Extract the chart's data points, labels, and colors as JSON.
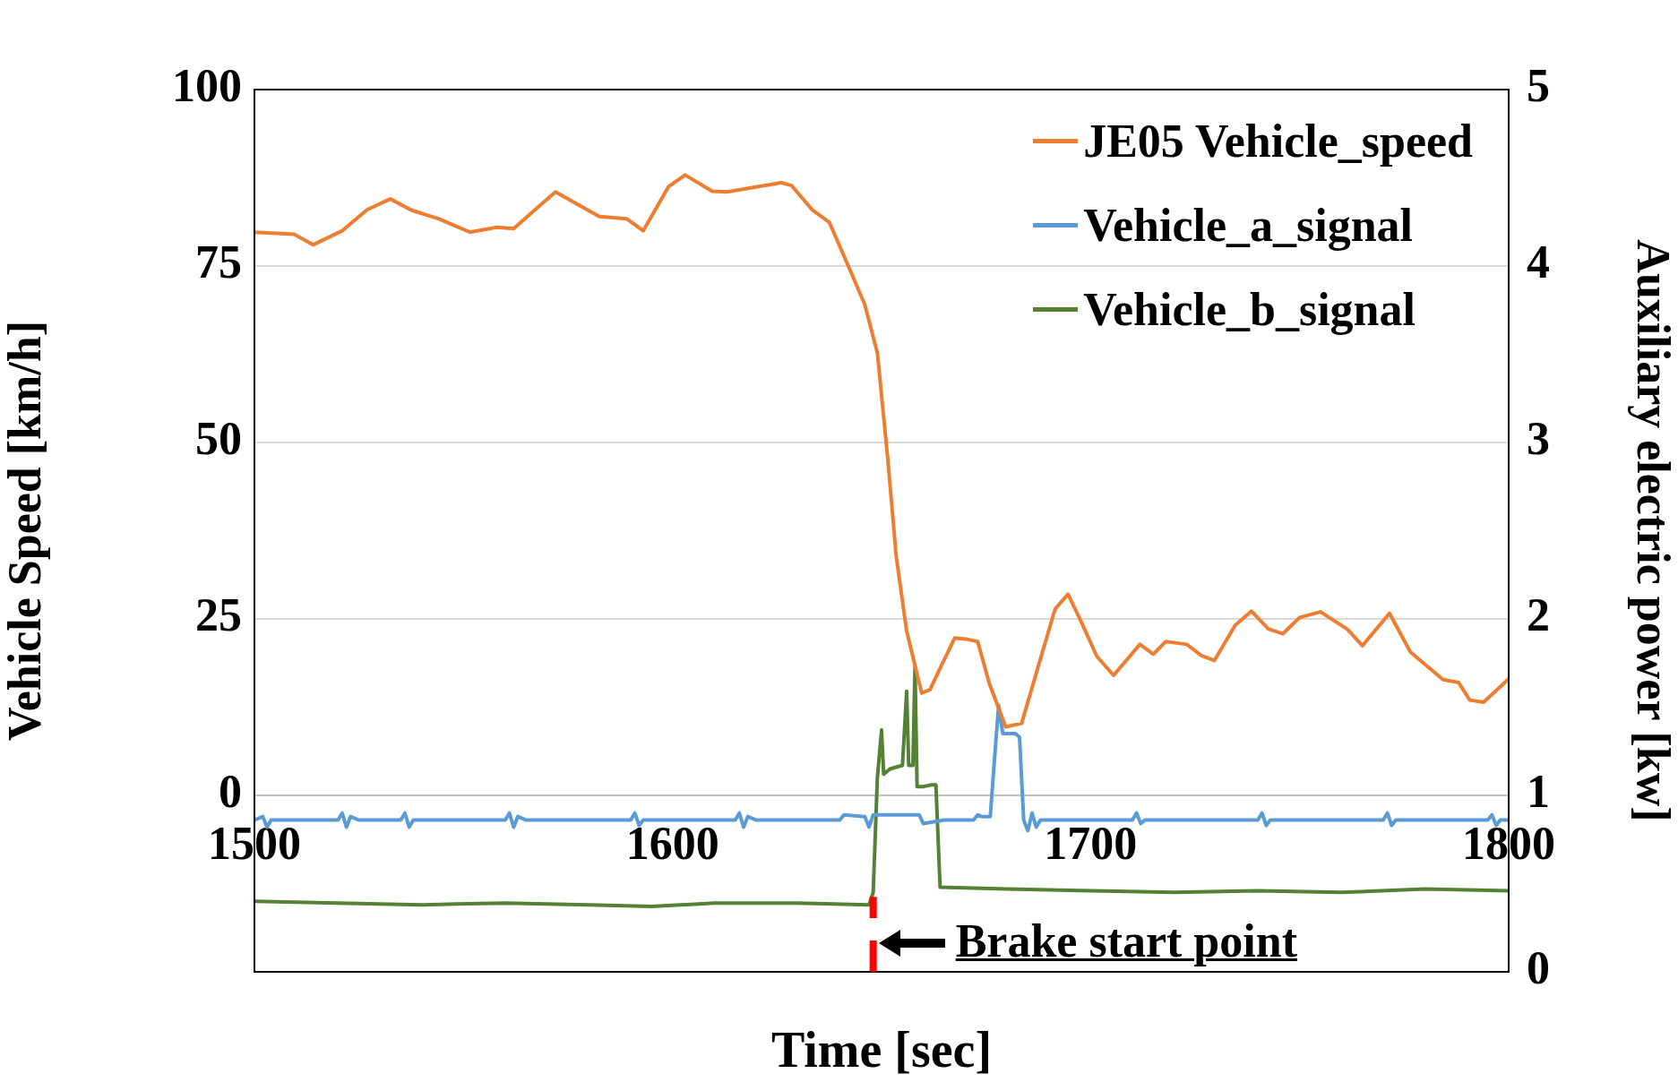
{
  "chart_data": {
    "type": "line",
    "xlabel": "Time [sec]",
    "ylabel": "Vehicle Speed [km/h]",
    "y2label": "Auxiliary electric power [kw]",
    "xlim": [
      1500,
      1800
    ],
    "xticks": [
      1500,
      1600,
      1700,
      1800
    ],
    "ylim": [
      -25,
      100
    ],
    "yticks": [
      0,
      25,
      50,
      75,
      100
    ],
    "y2lim": [
      0,
      5
    ],
    "y2ticks": [
      0,
      1,
      2,
      3,
      4,
      5
    ],
    "grid": "y",
    "legend": "top right",
    "marker": "none",
    "line_style": "solid",
    "ref_lines": [
      {
        "axis": "x",
        "value": 1648,
        "color": "#ff0000",
        "line_style": "dashed"
      }
    ],
    "annotations": [
      {
        "text": "Brake start point",
        "x": 1648,
        "y": -21
      }
    ],
    "series": [
      {
        "name": "JE05 Vehicle_speed",
        "color": "#ed7d31",
        "x": [
          1500,
          1509.5,
          1514,
          1521,
          1527,
          1532.5,
          1537.6,
          1544,
          1551.5,
          1558,
          1562,
          1566,
          1572,
          1582.5,
          1589,
          1593,
          1599,
          1603,
          1609.5,
          1613,
          1626,
          1628.5,
          1633.5,
          1637.5,
          1642.5,
          1646,
          1649,
          1651.5,
          1653.5,
          1656,
          1659.6,
          1661.6,
          1664,
          1667.5,
          1670.6,
          1673,
          1675.8,
          1679.7,
          1683.5,
          1687,
          1691.5,
          1694.6,
          1697.6,
          1701.5,
          1705.5,
          1711.8,
          1715,
          1718,
          1723,
          1726.5,
          1729.6,
          1734.6,
          1738.5,
          1742.5,
          1746,
          1750,
          1755,
          1761.5,
          1765,
          1771.5,
          1776.5,
          1784.3,
          1788,
          1790.7,
          1794,
          1800
        ],
        "values": [
          79.8,
          79.5,
          78,
          80,
          83,
          84.5,
          82.9,
          81.7,
          79.8,
          80.5,
          80.3,
          82.4,
          85.5,
          82,
          81.7,
          80,
          86.2,
          87.9,
          85.6,
          85.5,
          86.8,
          86.4,
          82.9,
          81.2,
          74.4,
          69.5,
          62.7,
          47.6,
          33.9,
          23.3,
          14.5,
          15,
          18,
          22.3,
          22.1,
          21.8,
          15.8,
          9.7,
          10.2,
          17.3,
          26.4,
          28.5,
          24.8,
          19.7,
          17,
          21.4,
          20,
          21.8,
          21.4,
          19.8,
          19.1,
          24.1,
          26.1,
          23.6,
          22.9,
          25.2,
          26,
          23.5,
          21.2,
          25.8,
          20.3,
          16.4,
          16,
          13.5,
          13.2,
          16.5
        ]
      },
      {
        "name": "Vehicle_a_signal",
        "color": "#5b9bd5",
        "axis": "y2",
        "x": [
          1500,
          1502,
          1503,
          1504,
          1520,
          1521,
          1522,
          1523,
          1525,
          1535,
          1536,
          1537,
          1538,
          1560,
          1561,
          1562,
          1563,
          1565,
          1590,
          1591,
          1592,
          1593,
          1615,
          1616,
          1617,
          1618,
          1620,
          1640,
          1641,
          1646,
          1647,
          1648,
          1659,
          1660,
          1665,
          1672,
          1673,
          1674,
          1676,
          1677,
          1678,
          1679,
          1682,
          1683,
          1684,
          1685,
          1686,
          1687,
          1688,
          1710,
          1711,
          1712,
          1713,
          1740,
          1741,
          1742,
          1743,
          1770,
          1771,
          1772,
          1773,
          1795,
          1796,
          1797,
          1798,
          1800
        ],
        "values": [
          0.86,
          0.88,
          0.82,
          0.86,
          0.86,
          0.9,
          0.82,
          0.88,
          0.86,
          0.86,
          0.9,
          0.82,
          0.86,
          0.86,
          0.9,
          0.82,
          0.88,
          0.86,
          0.86,
          0.9,
          0.83,
          0.86,
          0.86,
          0.9,
          0.82,
          0.88,
          0.86,
          0.86,
          0.89,
          0.88,
          0.82,
          0.89,
          0.89,
          0.84,
          0.86,
          0.86,
          0.89,
          0.88,
          0.88,
          1.2,
          1.51,
          1.35,
          1.35,
          1.33,
          0.86,
          0.8,
          0.9,
          0.82,
          0.86,
          0.86,
          0.9,
          0.84,
          0.86,
          0.86,
          0.9,
          0.83,
          0.86,
          0.86,
          0.9,
          0.83,
          0.86,
          0.86,
          0.89,
          0.83,
          0.86,
          0.86
        ]
      },
      {
        "name": "Vehicle_b_signal",
        "color": "#548235",
        "axis": "y2",
        "x": [
          1500,
          1520,
          1540,
          1560,
          1580,
          1595,
          1610,
          1630,
          1647,
          1648,
          1649,
          1650,
          1650.5,
          1652,
          1655,
          1656,
          1656.5,
          1657.5,
          1658,
          1658.5,
          1660,
          1662,
          1663,
          1664,
          1680,
          1700,
          1720,
          1740,
          1760,
          1780,
          1800
        ],
        "values": [
          0.4,
          0.39,
          0.38,
          0.39,
          0.38,
          0.37,
          0.39,
          0.39,
          0.38,
          0.45,
          1.1,
          1.37,
          1.12,
          1.15,
          1.17,
          1.59,
          1.17,
          1.17,
          1.73,
          1.05,
          1.05,
          1.06,
          1.06,
          0.48,
          0.47,
          0.46,
          0.45,
          0.46,
          0.45,
          0.47,
          0.46
        ]
      }
    ]
  }
}
